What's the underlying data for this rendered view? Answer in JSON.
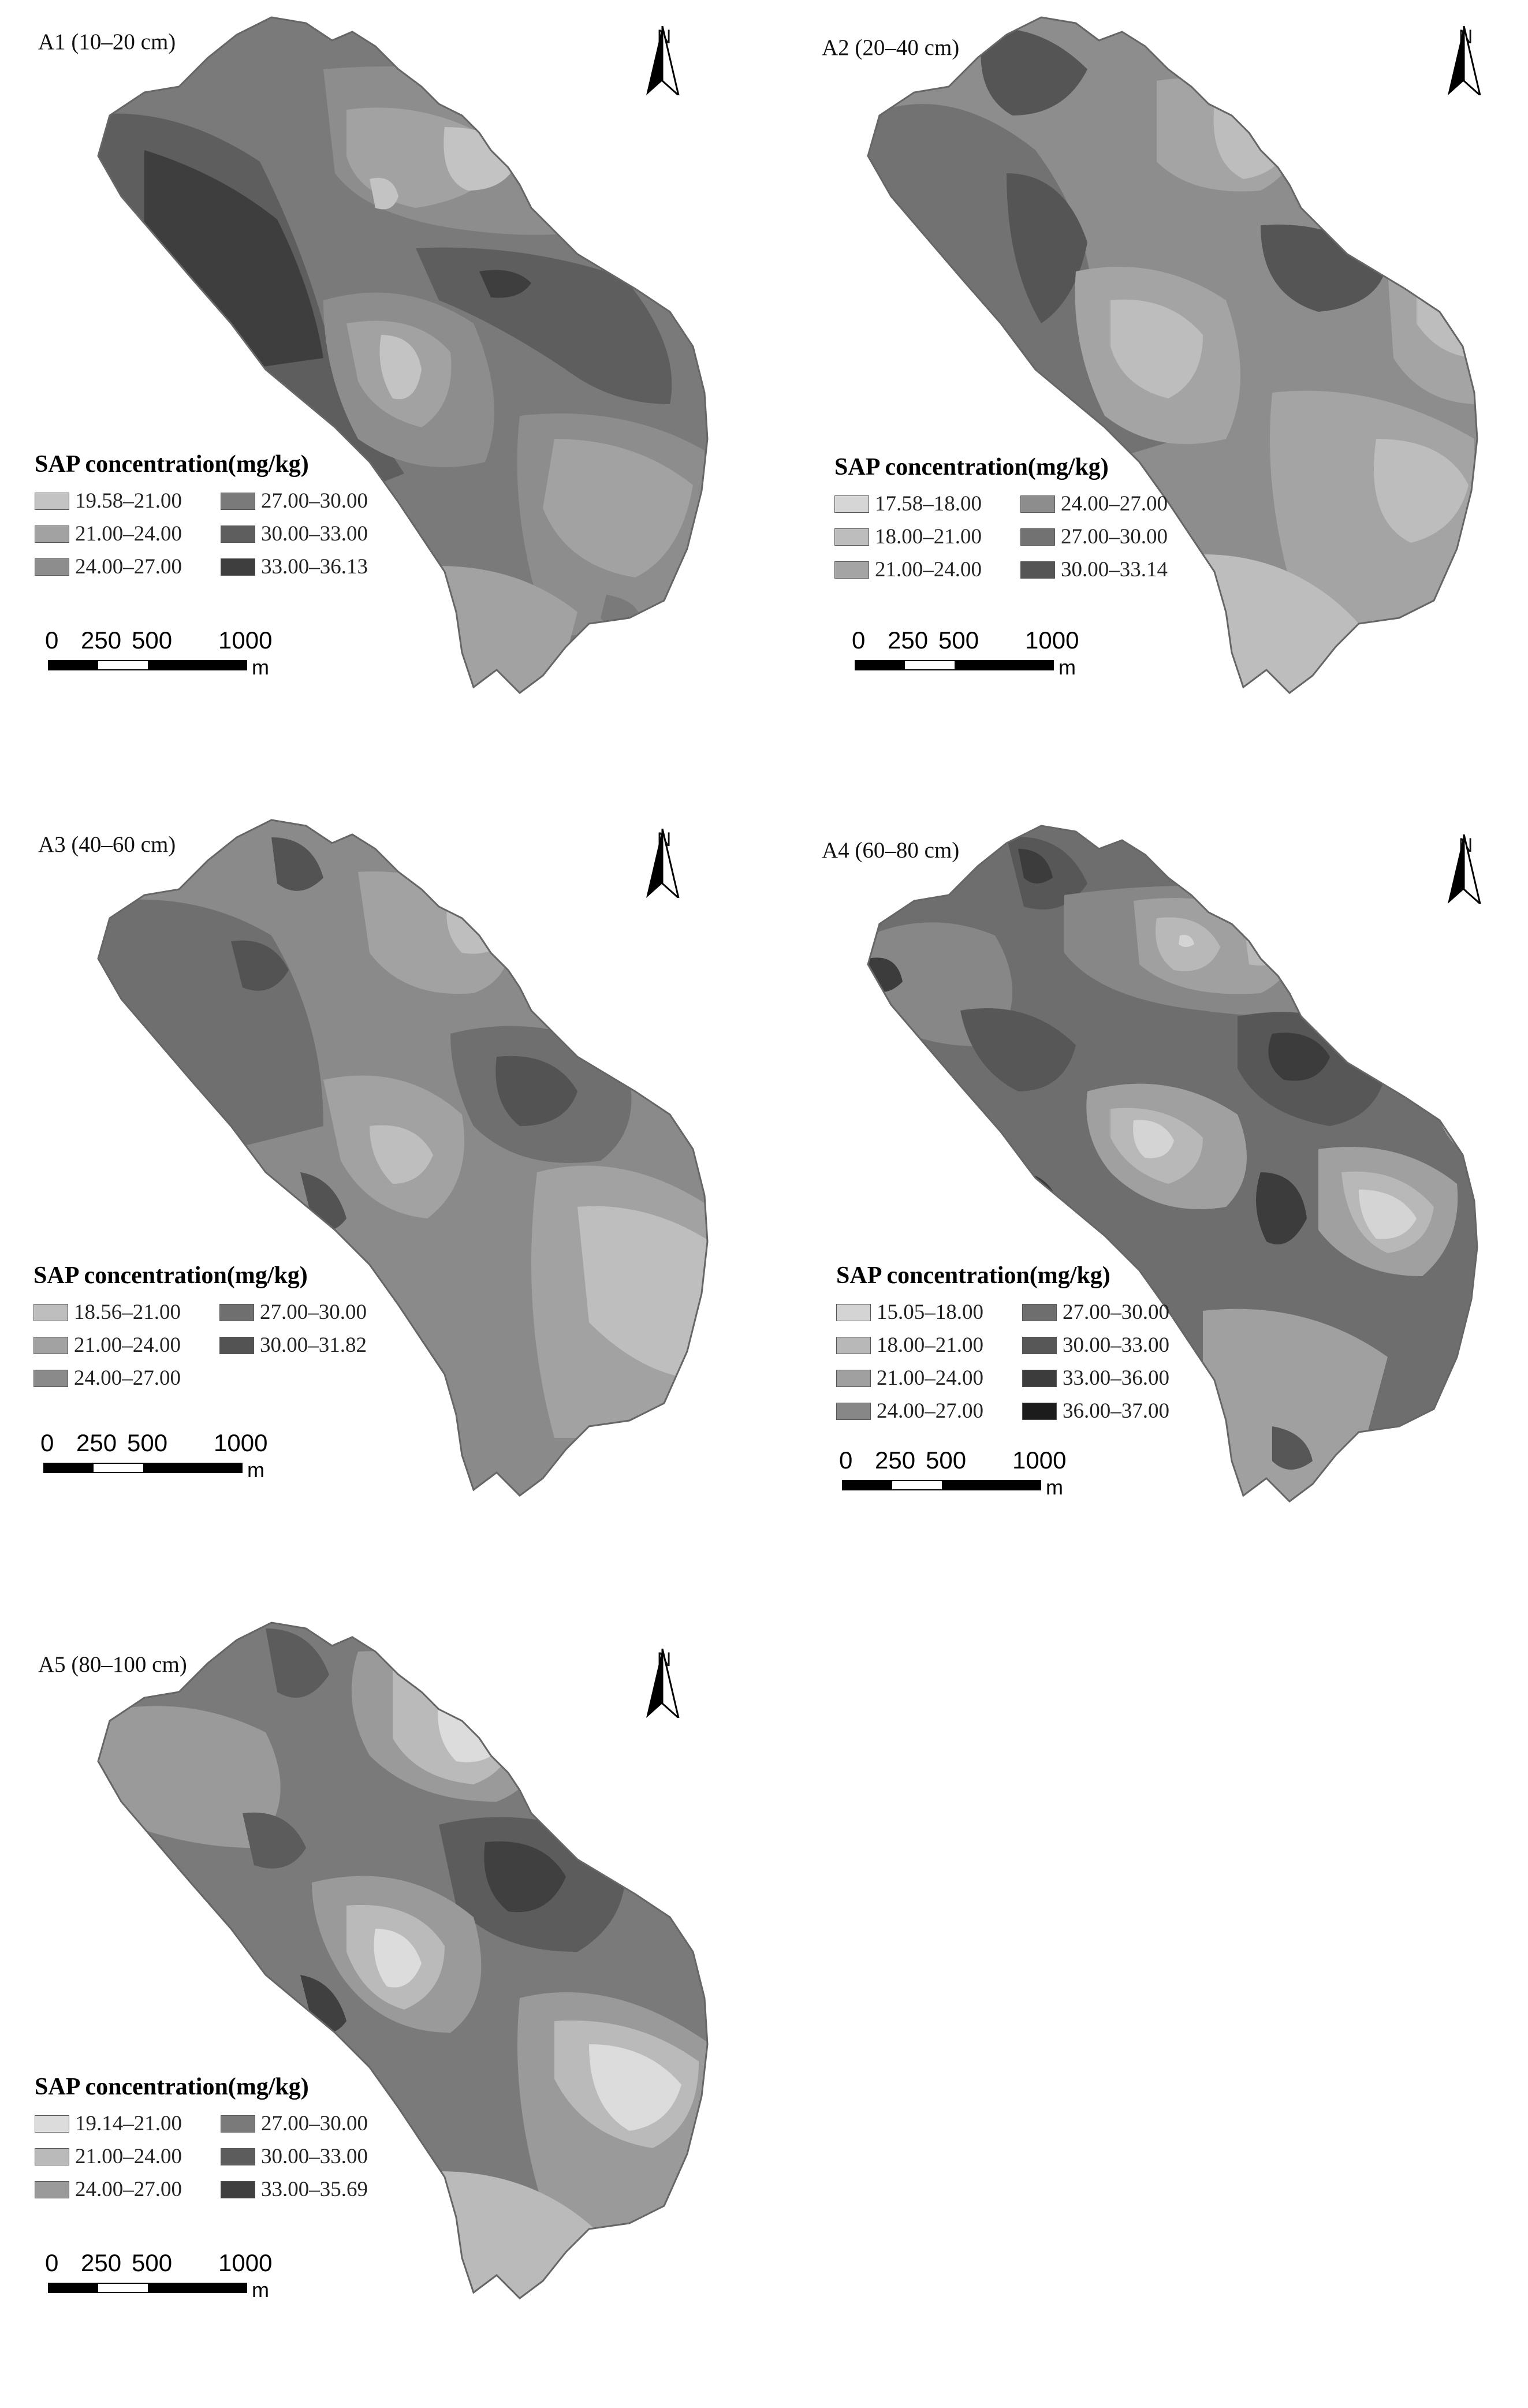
{
  "north_label": "N",
  "legend_title": "SAP concentration(mg/kg)",
  "scale": {
    "labels": [
      "0",
      "250",
      "500",
      "1000"
    ],
    "unit": "m"
  },
  "icons": {
    "north_arrow": "north-arrow-icon"
  },
  "panels": [
    {
      "id": "A1",
      "title": "A1 (10–20 cm)",
      "legend": [
        {
          "label": "19.58–21.00",
          "color": "#c3c3c3"
        },
        {
          "label": "27.00–30.00",
          "color": "#7a7a7a"
        },
        {
          "label": "21.00–24.00",
          "color": "#a2a2a2"
        },
        {
          "label": "30.00–33.00",
          "color": "#5e5e5e"
        },
        {
          "label": "24.00–27.00",
          "color": "#8d8d8d"
        },
        {
          "label": "33.00–36.13",
          "color": "#3e3e3e"
        }
      ]
    },
    {
      "id": "A2",
      "title": "A2 (20–40 cm)",
      "legend": [
        {
          "label": "17.58–18.00",
          "color": "#d6d6d6"
        },
        {
          "label": "24.00–27.00",
          "color": "#8d8d8d"
        },
        {
          "label": "18.00–21.00",
          "color": "#bdbdbd"
        },
        {
          "label": "27.00–30.00",
          "color": "#727272"
        },
        {
          "label": "21.00–24.00",
          "color": "#a4a4a4"
        },
        {
          "label": "30.00–33.14",
          "color": "#555555"
        }
      ]
    },
    {
      "id": "A3",
      "title": "A3 (40–60 cm)",
      "legend": [
        {
          "label": "18.56–21.00",
          "color": "#bebebe"
        },
        {
          "label": "27.00–30.00",
          "color": "#6f6f6f"
        },
        {
          "label": "21.00–24.00",
          "color": "#a2a2a2"
        },
        {
          "label": "30.00–31.82",
          "color": "#535353"
        },
        {
          "label": "24.00–27.00",
          "color": "#8a8a8a"
        }
      ]
    },
    {
      "id": "A4",
      "title": "A4 (60–80 cm)",
      "legend": [
        {
          "label": "15.05–18.00",
          "color": "#d4d4d4"
        },
        {
          "label": "27.00–30.00",
          "color": "#6e6e6e"
        },
        {
          "label": "18.00–21.00",
          "color": "#b8b8b8"
        },
        {
          "label": "30.00–33.00",
          "color": "#575757"
        },
        {
          "label": "21.00–24.00",
          "color": "#a0a0a0"
        },
        {
          "label": "33.00–36.00",
          "color": "#3c3c3c"
        },
        {
          "label": "24.00–27.00",
          "color": "#878787"
        },
        {
          "label": "36.00–37.00",
          "color": "#1c1c1c"
        }
      ]
    },
    {
      "id": "A5",
      "title": "A5 (80–100 cm)",
      "legend": [
        {
          "label": "19.14–21.00",
          "color": "#dcdcdc"
        },
        {
          "label": "27.00–30.00",
          "color": "#7a7a7a"
        },
        {
          "label": "21.00–24.00",
          "color": "#bababa"
        },
        {
          "label": "30.00–33.00",
          "color": "#5c5c5c"
        },
        {
          "label": "24.00–27.00",
          "color": "#9a9a9a"
        },
        {
          "label": "33.00–35.69",
          "color": "#404040"
        }
      ]
    }
  ]
}
